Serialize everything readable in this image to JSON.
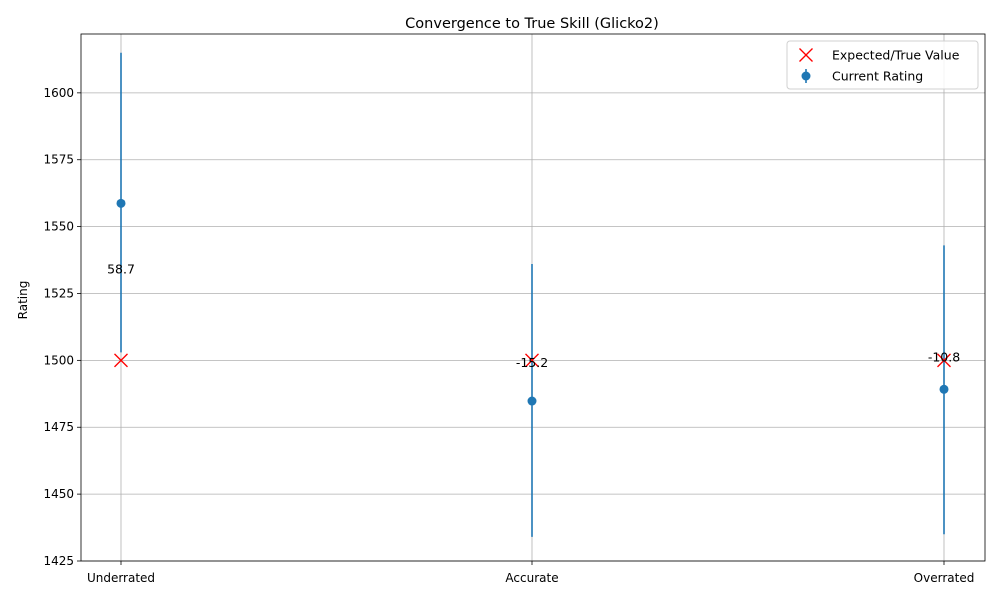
{
  "chart_data": {
    "type": "scatter",
    "title": "Convergence to True Skill (Glicko2)",
    "xlabel": "",
    "ylabel": "Rating",
    "categories": [
      "Underrated",
      "Accurate",
      "Overrated"
    ],
    "ylim": [
      1425,
      1622
    ],
    "yticks": [
      1425,
      1450,
      1475,
      1500,
      1525,
      1550,
      1575,
      1600
    ],
    "grid": true,
    "legend_position": "top-right",
    "series": [
      {
        "name": "Expected/True Value",
        "marker": "x",
        "color": "#ff0000",
        "values": [
          1500,
          1500,
          1500
        ]
      },
      {
        "name": "Current Rating",
        "marker": "circle",
        "color": "#1f77b4",
        "values": [
          1558.7,
          1484.8,
          1489.2
        ],
        "error_low": [
          1503,
          1434,
          1435
        ],
        "error_high": [
          1615,
          1536,
          1543
        ]
      }
    ],
    "annotations": [
      {
        "text": "58.7",
        "category": "Underrated",
        "y": 1534
      },
      {
        "text": "-15.2",
        "category": "Accurate",
        "y": 1499
      },
      {
        "text": "-10.8",
        "category": "Overrated",
        "y": 1501
      }
    ]
  }
}
